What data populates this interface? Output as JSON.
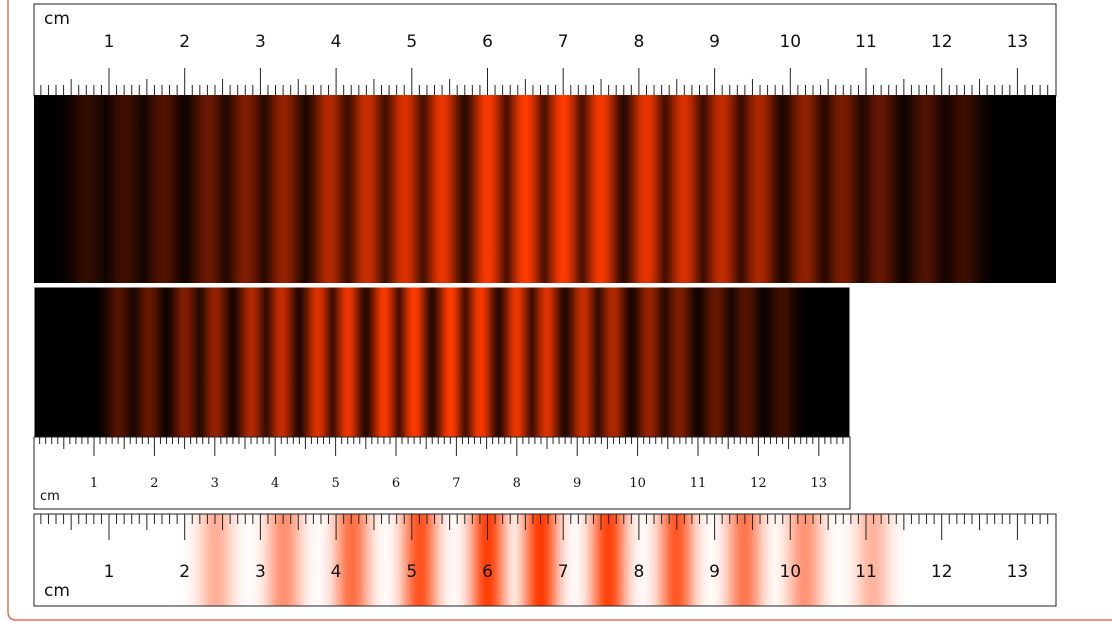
{
  "unit_label": "cm",
  "ruler_numbers": [
    "1",
    "2",
    "3",
    "4",
    "5",
    "6",
    "7",
    "8",
    "9",
    "10",
    "11",
    "12",
    "13"
  ],
  "colors": {
    "fringe_peak": "#ff3a00",
    "background_dark": "#000000",
    "background_light": "#ffffff",
    "frame_border": "#e8502a",
    "ruler_line": "#222222"
  },
  "panels": [
    {
      "name": "wide-fringe-panel",
      "pattern": "bright fringes on dark",
      "fringe_centers_cm": [
        0.7,
        1.2,
        1.7,
        2.3,
        2.8,
        3.3,
        3.9,
        4.4,
        4.9,
        5.4,
        6.0,
        6.5,
        7.0,
        7.5,
        8.1,
        8.6,
        9.1,
        9.6,
        10.2,
        10.7,
        11.2,
        11.8,
        12.3
      ],
      "ruler": "top"
    },
    {
      "name": "narrow-fringe-panel",
      "pattern": "bright fringes on dark",
      "fringe_centers_cm": [
        1.4,
        1.9,
        2.5,
        3.0,
        3.6,
        4.1,
        4.7,
        5.2,
        5.8,
        6.3,
        6.9,
        7.4,
        8.0,
        8.5,
        9.1,
        9.6,
        10.2,
        10.7,
        11.3,
        11.8,
        12.4
      ],
      "ruler": "bottom"
    },
    {
      "name": "light-fringe-panel",
      "pattern": "coloured fringes on white",
      "fringe_centers_cm": [
        2.4,
        3.3,
        4.2,
        5.1,
        6.0,
        6.7,
        7.6,
        8.5,
        9.4,
        10.2,
        11.1
      ],
      "ruler": "overlay"
    }
  ]
}
